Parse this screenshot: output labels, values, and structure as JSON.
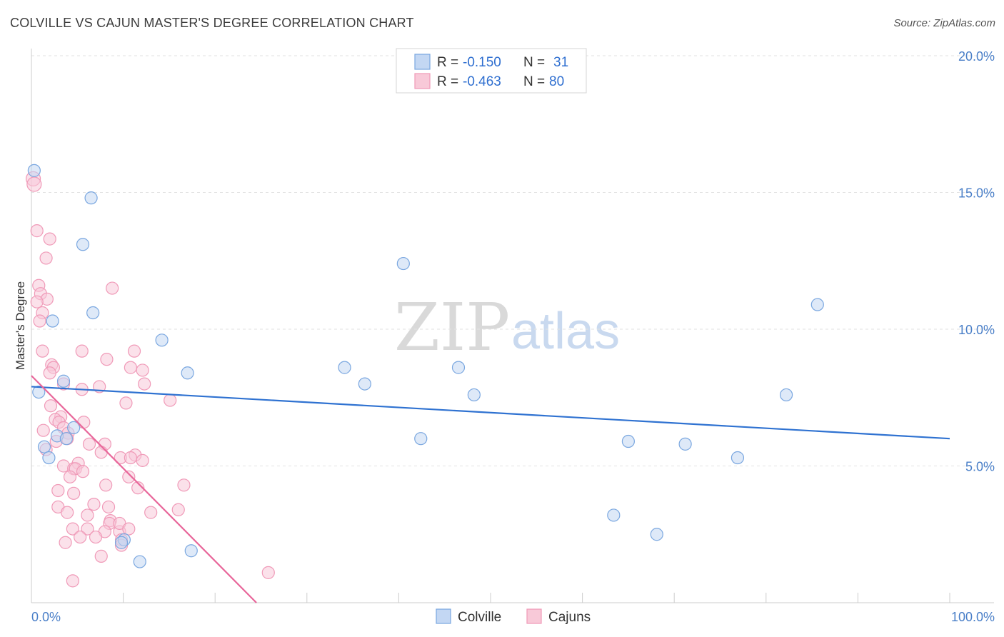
{
  "title": "COLVILLE VS CAJUN MASTER'S DEGREE CORRELATION CHART",
  "source": "Source: ZipAtlas.com",
  "watermark": {
    "zip": "ZIP",
    "atlas": "atlas"
  },
  "legend_top": {
    "rows": [
      {
        "series": "Colville",
        "r_label": "R =",
        "r_value": "-0.150",
        "n_label": "N =",
        "n_value": "31"
      },
      {
        "series": "Cajuns",
        "r_label": "R =",
        "r_value": "-0.463",
        "n_label": "N =",
        "n_value": "80"
      }
    ]
  },
  "chart_data": {
    "type": "scatter",
    "title": "COLVILLE VS CAJUN MASTER'S DEGREE CORRELATION CHART",
    "xlabel": "",
    "ylabel": "Master's Degree",
    "xlim": [
      0,
      100
    ],
    "ylim": [
      0,
      20
    ],
    "x_tick_labels": [
      "0.0%",
      "100.0%"
    ],
    "y_ticks": [
      5,
      10,
      15,
      20
    ],
    "y_tick_labels": [
      "5.0%",
      "10.0%",
      "15.0%",
      "20.0%"
    ],
    "grid": true,
    "legend_bottom": [
      "Colville",
      "Cajuns"
    ],
    "series": [
      {
        "name": "Colville",
        "color": "#7aa7e0",
        "fill": "#c3d7f3",
        "line_color": "#2f72d1",
        "trend": {
          "x": [
            0,
            100
          ],
          "y": [
            7.9,
            6.0
          ]
        },
        "points": [
          [
            0.3,
            15.8
          ],
          [
            6.5,
            14.8
          ],
          [
            5.6,
            13.1
          ],
          [
            40.5,
            12.4
          ],
          [
            85.6,
            10.9
          ],
          [
            6.7,
            10.6
          ],
          [
            2.3,
            10.3
          ],
          [
            14.2,
            9.6
          ],
          [
            17.0,
            8.4
          ],
          [
            34.1,
            8.6
          ],
          [
            36.3,
            8.0
          ],
          [
            46.5,
            8.6
          ],
          [
            48.2,
            7.6
          ],
          [
            82.2,
            7.6
          ],
          [
            0.8,
            7.7
          ],
          [
            3.5,
            8.1
          ],
          [
            4.6,
            6.4
          ],
          [
            2.8,
            6.1
          ],
          [
            3.8,
            6.0
          ],
          [
            42.4,
            6.0
          ],
          [
            65.0,
            5.9
          ],
          [
            71.2,
            5.8
          ],
          [
            76.9,
            5.3
          ],
          [
            1.4,
            5.7
          ],
          [
            1.9,
            5.3
          ],
          [
            63.4,
            3.2
          ],
          [
            68.1,
            2.5
          ],
          [
            10.1,
            2.3
          ],
          [
            11.8,
            1.5
          ],
          [
            17.4,
            1.9
          ],
          [
            9.8,
            2.2
          ]
        ]
      },
      {
        "name": "Cajuns",
        "color": "#f09ab8",
        "fill": "#f8c9d8",
        "line_color": "#e8669a",
        "trend": {
          "x": [
            0,
            24.5
          ],
          "y": [
            8.3,
            0
          ]
        },
        "points": [
          [
            0.2,
            15.5
          ],
          [
            0.3,
            15.3
          ],
          [
            0.6,
            13.6
          ],
          [
            2.0,
            13.3
          ],
          [
            1.6,
            12.6
          ],
          [
            0.8,
            11.6
          ],
          [
            1.0,
            11.3
          ],
          [
            1.7,
            11.1
          ],
          [
            0.6,
            11.0
          ],
          [
            8.8,
            11.5
          ],
          [
            1.2,
            10.6
          ],
          [
            0.9,
            10.3
          ],
          [
            1.2,
            9.2
          ],
          [
            5.5,
            9.2
          ],
          [
            8.2,
            8.9
          ],
          [
            11.2,
            9.2
          ],
          [
            2.2,
            8.7
          ],
          [
            2.4,
            8.6
          ],
          [
            10.8,
            8.6
          ],
          [
            2.0,
            8.4
          ],
          [
            12.1,
            8.5
          ],
          [
            3.5,
            8.0
          ],
          [
            12.3,
            8.0
          ],
          [
            7.4,
            7.9
          ],
          [
            5.5,
            7.8
          ],
          [
            15.1,
            7.4
          ],
          [
            10.3,
            7.3
          ],
          [
            2.1,
            7.2
          ],
          [
            3.2,
            6.8
          ],
          [
            2.6,
            6.7
          ],
          [
            3.0,
            6.6
          ],
          [
            5.7,
            6.6
          ],
          [
            3.5,
            6.4
          ],
          [
            1.3,
            6.3
          ],
          [
            4.0,
            6.2
          ],
          [
            3.9,
            6.0
          ],
          [
            2.7,
            5.9
          ],
          [
            8.0,
            5.8
          ],
          [
            6.3,
            5.8
          ],
          [
            1.6,
            5.6
          ],
          [
            7.6,
            5.5
          ],
          [
            11.3,
            5.4
          ],
          [
            9.7,
            5.3
          ],
          [
            10.8,
            5.3
          ],
          [
            12.1,
            5.2
          ],
          [
            5.1,
            5.1
          ],
          [
            3.5,
            5.0
          ],
          [
            4.6,
            4.9
          ],
          [
            4.8,
            4.9
          ],
          [
            5.6,
            4.8
          ],
          [
            4.2,
            4.6
          ],
          [
            10.6,
            4.6
          ],
          [
            8.1,
            4.3
          ],
          [
            11.6,
            4.2
          ],
          [
            16.6,
            4.3
          ],
          [
            2.9,
            4.1
          ],
          [
            4.6,
            4.0
          ],
          [
            6.8,
            3.6
          ],
          [
            2.9,
            3.5
          ],
          [
            8.4,
            3.5
          ],
          [
            16.0,
            3.4
          ],
          [
            3.9,
            3.3
          ],
          [
            13.0,
            3.3
          ],
          [
            6.1,
            3.2
          ],
          [
            8.6,
            3.0
          ],
          [
            8.5,
            2.9
          ],
          [
            4.5,
            2.7
          ],
          [
            6.1,
            2.7
          ],
          [
            8.0,
            2.6
          ],
          [
            9.6,
            2.6
          ],
          [
            7.0,
            2.4
          ],
          [
            9.8,
            2.3
          ],
          [
            5.3,
            2.4
          ],
          [
            3.7,
            2.2
          ],
          [
            9.8,
            2.1
          ],
          [
            7.6,
            1.7
          ],
          [
            25.8,
            1.1
          ],
          [
            4.5,
            0.8
          ],
          [
            9.6,
            2.9
          ],
          [
            10.6,
            2.7
          ]
        ]
      }
    ]
  }
}
